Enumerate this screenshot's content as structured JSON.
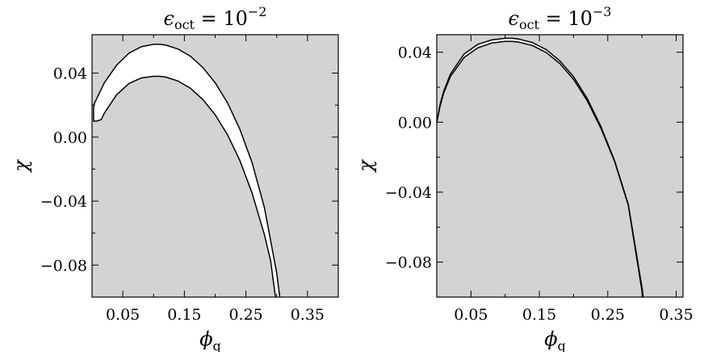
{
  "chart_data": [
    {
      "type": "area",
      "title": "ϵoct = 10−2",
      "title_main": "ϵ",
      "title_sub": "oct",
      "title_rest": " = 10",
      "title_exp": "−2",
      "xlabel_main": "ϕ",
      "xlabel_sub": "q",
      "ylabel": "χ",
      "xlim": [
        0.0,
        0.4
      ],
      "ylim": [
        -0.1,
        0.064
      ],
      "xticks": [
        0.05,
        0.15,
        0.25,
        0.35
      ],
      "xtick_labels": [
        "0.05",
        "0.15",
        "0.25",
        "0.35"
      ],
      "xminor": [
        0.1,
        0.2,
        0.3
      ],
      "yticks": [
        0.04,
        0.0,
        -0.04,
        -0.08
      ],
      "ytick_labels": [
        "0.04",
        "0.00",
        "−0.04",
        "−0.08"
      ],
      "yminor": [
        0.02,
        -0.02,
        -0.06
      ],
      "background": "#d3d3d3",
      "region_fill": "#ffffff",
      "series": [
        {
          "x": [
            0.0025,
            0.02,
            0.04,
            0.06,
            0.08,
            0.1,
            0.11,
            0.12,
            0.14,
            0.16,
            0.18,
            0.2,
            0.22,
            0.24,
            0.26,
            0.28,
            0.3,
            0.305
          ],
          "y": [
            0.02,
            0.034,
            0.045,
            0.0525,
            0.0565,
            0.058,
            0.058,
            0.0575,
            0.055,
            0.0505,
            0.0435,
            0.034,
            0.0215,
            0.005,
            -0.016,
            -0.044,
            -0.085,
            -0.1
          ]
        },
        {
          "x": [
            0.0025,
            0.0025,
            0.0075,
            0.0075,
            0.015,
            0.02,
            0.04,
            0.06,
            0.08,
            0.1,
            0.11,
            0.12,
            0.14,
            0.16,
            0.18,
            0.2,
            0.22,
            0.24,
            0.26,
            0.28,
            0.29,
            0.298
          ],
          "y": [
            0.02,
            0.01,
            0.01,
            0.01,
            0.011,
            0.015,
            0.0265,
            0.0335,
            0.037,
            0.038,
            0.038,
            0.0375,
            0.035,
            0.0305,
            0.0235,
            0.014,
            0.0015,
            -0.0145,
            -0.035,
            -0.061,
            -0.077,
            -0.1
          ]
        }
      ]
    },
    {
      "type": "area",
      "title": "ϵoct = 10−3",
      "title_main": "ϵ",
      "title_sub": "oct",
      "title_rest": " = 10",
      "title_exp": "−3",
      "xlabel_main": "ϕ",
      "xlabel_sub": "q",
      "ylabel": "χ",
      "xlim": [
        0.0,
        0.36
      ],
      "ylim": [
        -0.1,
        0.05
      ],
      "xticks": [
        0.05,
        0.15,
        0.25,
        0.35
      ],
      "xtick_labels": [
        "0.05",
        "0.15",
        "0.25",
        "0.35"
      ],
      "xminor": [
        0.1,
        0.2,
        0.3
      ],
      "yticks": [
        0.04,
        0.0,
        -0.04,
        -0.08
      ],
      "ytick_labels": [
        "0.04",
        "0.00",
        "−0.04",
        "−0.08"
      ],
      "yminor": [
        0.02,
        -0.02,
        -0.06
      ],
      "background": "#d3d3d3",
      "region_fill": "#ffffff",
      "series": [
        {
          "x": [
            0.0,
            0.005,
            0.01,
            0.02,
            0.04,
            0.06,
            0.08,
            0.1,
            0.11,
            0.12,
            0.14,
            0.16,
            0.18,
            0.2,
            0.22,
            0.24,
            0.26,
            0.28,
            0.3,
            0.302
          ],
          "y": [
            0.0,
            0.0105,
            0.0175,
            0.0275,
            0.039,
            0.0445,
            0.047,
            0.048,
            0.048,
            0.0475,
            0.0455,
            0.0415,
            0.035,
            0.026,
            0.0135,
            -0.0025,
            -0.022,
            -0.047,
            -0.0945,
            -0.1
          ]
        },
        {
          "x": [
            0.0,
            0.005,
            0.01,
            0.02,
            0.04,
            0.06,
            0.08,
            0.1,
            0.11,
            0.12,
            0.14,
            0.16,
            0.18,
            0.2,
            0.22,
            0.24,
            0.26,
            0.28,
            0.3,
            0.301
          ],
          "y": [
            0.0,
            0.0095,
            0.0165,
            0.0262,
            0.037,
            0.0425,
            0.0452,
            0.0462,
            0.0462,
            0.0458,
            0.0438,
            0.0398,
            0.0335,
            0.0245,
            0.0122,
            -0.0035,
            -0.0225,
            -0.0475,
            -0.0965,
            -0.1
          ]
        }
      ]
    }
  ]
}
